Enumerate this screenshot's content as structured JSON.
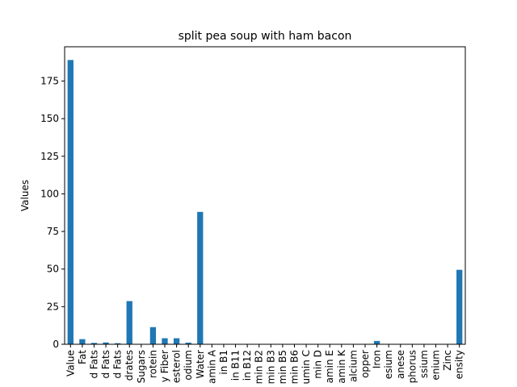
{
  "chart_data": {
    "type": "bar",
    "title": "split pea soup with ham bacon",
    "xlabel": "",
    "ylabel": "Values",
    "ylim": [
      0,
      197.8
    ],
    "yticks": [
      0,
      25,
      50,
      75,
      100,
      125,
      150,
      175
    ],
    "grid": false,
    "legend": "none",
    "bar_color": "#1f77b4",
    "categories": [
      "Value",
      "Fat",
      "d Fats",
      "d Fats",
      "d Fats",
      "drates",
      "Sugars",
      "rotein",
      "y Fiber",
      "esterol",
      "odium",
      "Water",
      "amin A",
      "in B1",
      "in B11",
      "in B12",
      "min B2",
      "min B3",
      "min B5",
      "min B6",
      "umin C",
      "min D",
      "amin E",
      "amin K",
      "alcium",
      "opper",
      "Iron",
      "esium",
      "anese",
      "phorus",
      "ssium",
      "enium",
      "Zinc",
      "ensity"
    ],
    "values": [
      189,
      3.4,
      0.9,
      1.2,
      0.7,
      28.7,
      0.1,
      11.4,
      4.0,
      4.0,
      1.1,
      88.0,
      0,
      0,
      0,
      0,
      0,
      0,
      0,
      0,
      0,
      0,
      0,
      0,
      0,
      0,
      2.2,
      0,
      0,
      0,
      0,
      0,
      0,
      49.5
    ]
  }
}
